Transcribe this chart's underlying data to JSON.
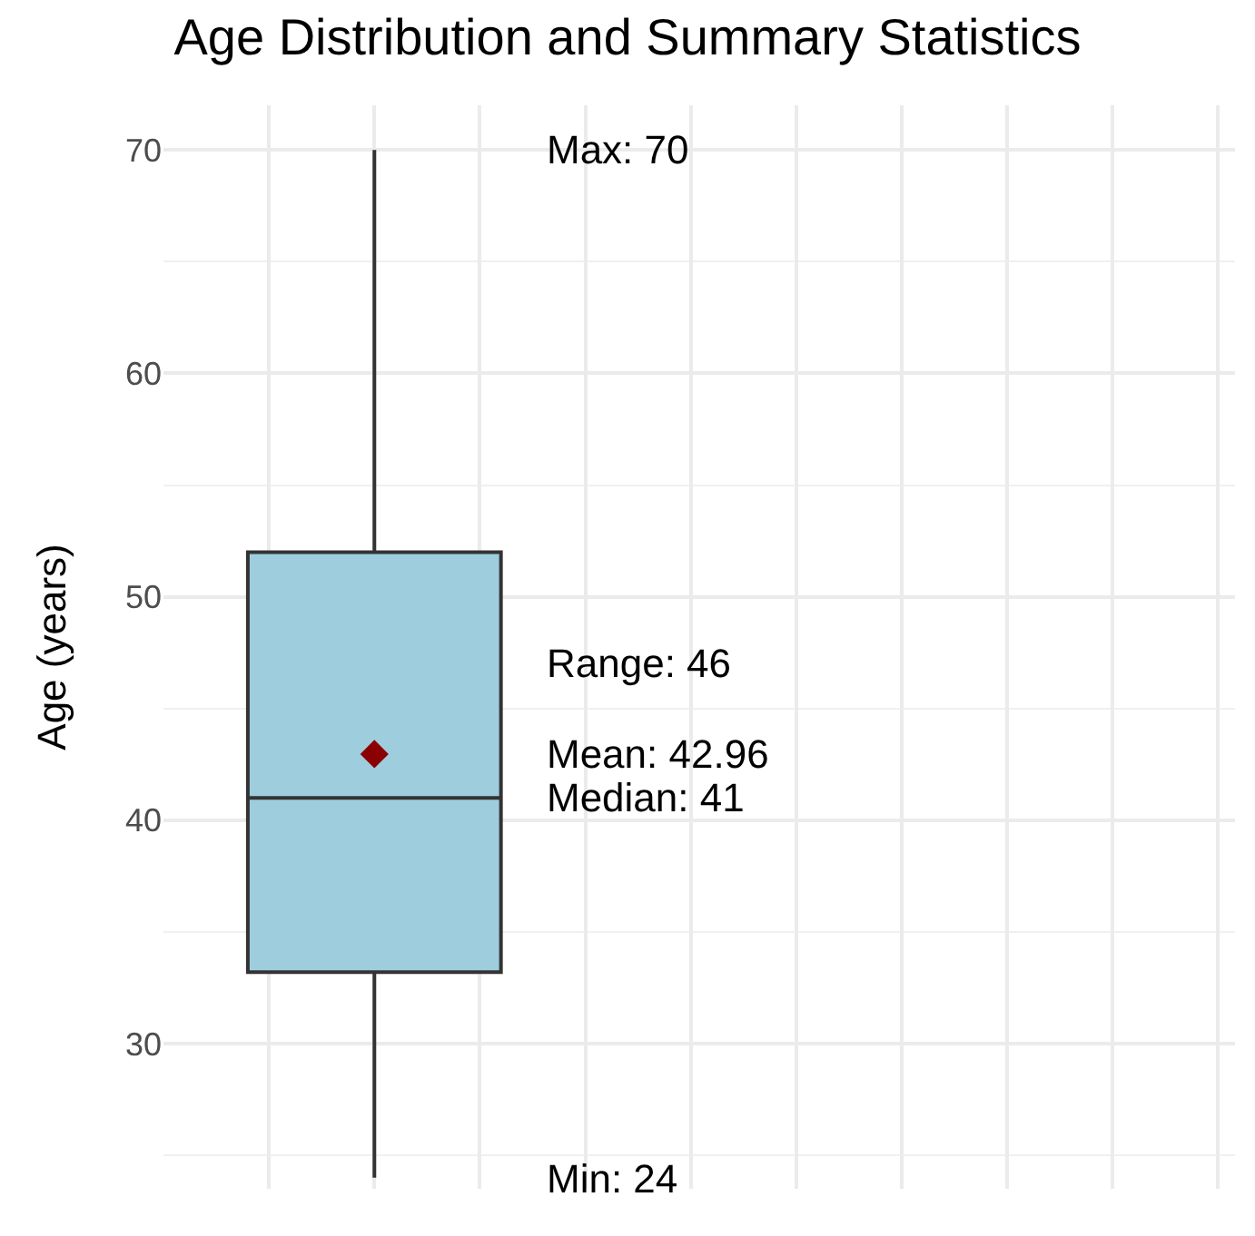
{
  "chart_data": {
    "type": "box",
    "title": "Age Distribution and Summary Statistics",
    "ylabel": "Age (years)",
    "categories": [
      null
    ],
    "boxes": [
      {
        "low": 24,
        "q1": 33.2,
        "median": 41,
        "q3": 52,
        "high": 70,
        "mean": 42.96
      }
    ],
    "color": "#9ecddd",
    "marker": "diamond",
    "ylim": [
      23.5,
      72
    ],
    "yticks": [
      30,
      40,
      50,
      60,
      70
    ],
    "grid": true,
    "annotations": [
      "Max: 70",
      "Range: 46",
      "Mean: 42.96",
      "Median: 41",
      "Min: 24"
    ]
  }
}
